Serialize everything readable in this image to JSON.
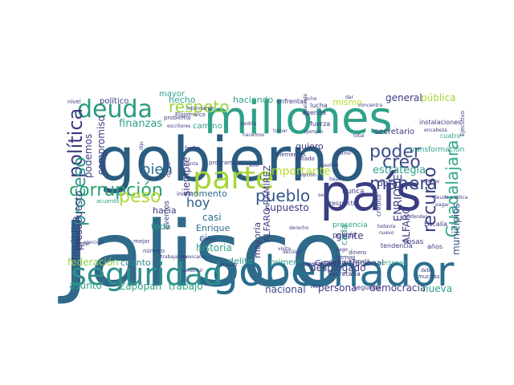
{
  "words": [
    {
      "text": "Jalisco",
      "color": "#2f6a8a"
    },
    {
      "text": "gobierno",
      "color": "#2b5c80"
    },
    {
      "text": "país",
      "color": "#3a3e82"
    },
    {
      "text": "millones",
      "color": "#2fa08a"
    },
    {
      "text": "gobernador",
      "color": "#2a6e8e"
    },
    {
      "text": "seguridad",
      "color": "#2e8f8c"
    },
    {
      "text": "parte",
      "color": "#a5d63a"
    },
    {
      "text": "deuda",
      "color": "#2a9b7e"
    },
    {
      "text": "corrupción",
      "color": "#2ba16f"
    },
    {
      "text": "respeto",
      "color": "#9ed43c"
    },
    {
      "text": "política",
      "color": "#3b3a80"
    },
    {
      "text": "poder",
      "color": "#3a4f8a"
    },
    {
      "text": "creo",
      "color": "#3a4a89"
    },
    {
      "text": "manera",
      "color": "#3a4a89"
    },
    {
      "text": "pueblo",
      "color": "#33578c"
    },
    {
      "text": "peso",
      "color": "#b0d834"
    },
    {
      "text": "bien",
      "color": "#2d6c8e"
    },
    {
      "text": "hoy",
      "color": "#2d5f8c"
    },
    {
      "text": "recurso",
      "color": "#3a3e82"
    },
    {
      "text": "Guadalajara",
      "color": "#2fa78a"
    },
    {
      "text": "proceso",
      "color": "#2f9a8a"
    },
    {
      "text": "importante",
      "color": "#b5de2b"
    },
    {
      "text": "estrategia",
      "color": "#2fa08a"
    },
    {
      "text": "general",
      "color": "#3b3a80"
    },
    {
      "text": "pública",
      "color": "#a5d63a"
    },
    {
      "text": "finanzas",
      "color": "#2fa08a"
    },
    {
      "text": "compromiso",
      "color": "#3b3a80"
    },
    {
      "text": "podemos",
      "color": "#3b3a80"
    },
    {
      "text": "presupuesto",
      "color": "#3b3a80"
    },
    {
      "text": "República",
      "color": "#3b3a80"
    },
    {
      "text": "federación",
      "color": "#8fd14f"
    },
    {
      "text": "cuanto",
      "color": "#2f8a8c"
    },
    {
      "text": "asunto",
      "color": "#2fa08a"
    },
    {
      "text": "Zapopan",
      "color": "#2fa08a"
    },
    {
      "text": "trabajo",
      "color": "#2fa08a"
    },
    {
      "text": "nacional",
      "color": "#3a4a89"
    },
    {
      "text": "persona",
      "color": "#3b3a80"
    },
    {
      "text": "democracia",
      "color": "#3b3a80"
    },
    {
      "text": "nueva",
      "color": "#2fa08a"
    },
    {
      "text": "municipios",
      "color": "#3a4a89"
    },
    {
      "text": "ENRIQUE",
      "color": "#3b3a80"
    },
    {
      "text": "ALFARO",
      "color": "#3b3a80"
    },
    {
      "text": "desplegado",
      "color": "#3b3a80"
    },
    {
      "text": "Guardia Nacional",
      "color": "#3b3a80"
    },
    {
      "text": "historia",
      "color": "#2fa08a"
    },
    {
      "text": "cinco",
      "color": "#2d6c8e"
    },
    {
      "text": "Enrique",
      "color": "#2d6c8e"
    },
    {
      "text": "casi",
      "color": "#2d6c8e"
    },
    {
      "text": "hacia",
      "color": "#3b3a80"
    },
    {
      "text": "momento",
      "color": "#2d6c8e"
    },
    {
      "text": "siempre",
      "color": "#3b3a80"
    },
    {
      "text": "supuesto",
      "color": "#3b3a80"
    },
    {
      "text": "gente",
      "color": "#3b3a80"
    },
    {
      "text": "cada",
      "color": "#2fa08a"
    },
    {
      "text": "obra",
      "color": "#3b3a80"
    },
    {
      "text": "mismo",
      "color": "#b5de2b"
    },
    {
      "text": "hecho",
      "color": "#2fa08a"
    },
    {
      "text": "haciendo",
      "color": "#2fa08a"
    },
    {
      "text": "mayor",
      "color": "#2fa08a"
    },
    {
      "text": "político",
      "color": "#3b3a80"
    },
    {
      "text": "camino",
      "color": "#2fa08a"
    },
    {
      "text": "ALFARO RAMÍREZ",
      "color": "#3b3a80"
    },
    {
      "text": "mayoría",
      "color": "#3b3a80"
    },
    {
      "text": "delito",
      "color": "#2fa08a"
    },
    {
      "text": "primero",
      "color": "#2fa08a"
    },
    {
      "text": "toda",
      "color": "#2fa08a"
    },
    {
      "text": "eventos",
      "color": "#3b3a80"
    },
    {
      "text": "quiero",
      "color": "#3b3a80"
    },
    {
      "text": "secretario",
      "color": "#3b3a80"
    },
    {
      "text": "cuatro",
      "color": "#2fa08a"
    },
    {
      "text": "transformación",
      "color": "#2fa08a"
    },
    {
      "text": "Fiscalía",
      "color": "#3b3a80"
    },
    {
      "text": "cosas",
      "color": "#3b3a80"
    },
    {
      "text": "presencia",
      "color": "#2fa08a"
    },
    {
      "text": "policía",
      "color": "#3b3a80"
    },
    {
      "text": "respecto",
      "color": "#3b3a80"
    },
    {
      "text": "Secretaría",
      "color": "#3b3a80"
    },
    {
      "text": "nunca",
      "color": "#3b3a80"
    },
    {
      "text": "agenda",
      "color": "#3b3a80"
    },
    {
      "text": "fuerza",
      "color": "#3b3a80"
    },
    {
      "text": "lucha",
      "color": "#3b3a80"
    },
    {
      "text": "enfrentar",
      "color": "#3b3a80"
    },
    {
      "text": "reducción",
      "color": "#3b3a80"
    },
    {
      "text": "personas",
      "color": "#2fa08a"
    },
    {
      "text": "segunda",
      "color": "#3b3a80"
    },
    {
      "text": "muchas",
      "color": "#3b3a80"
    },
    {
      "text": "tendencia",
      "color": "#3b3a80"
    },
    {
      "text": "años",
      "color": "#3b3a80"
    },
    {
      "text": "Ejecutivo",
      "color": "#3b3a80"
    },
    {
      "text": "crédito",
      "color": "#3b3a80"
    },
    {
      "text": "Defender",
      "color": "#3b3a80"
    },
    {
      "text": "deuda pública",
      "color": "#3b3a80"
    },
    {
      "text": "instalaciones",
      "color": "#3b3a80"
    },
    {
      "text": "encabeza",
      "color": "#3b3a80"
    },
    {
      "text": "dinero",
      "color": "#3b3a80"
    },
    {
      "text": "tiempo",
      "color": "#3b3a80"
    },
    {
      "text": "Tonalá",
      "color": "#3b3a80"
    },
    {
      "text": "todavía",
      "color": "#3b3a80"
    },
    {
      "text": "nuevo",
      "color": "#3b3a80"
    },
    {
      "text": "interés",
      "color": "#3b3a80"
    },
    {
      "text": "total",
      "color": "#3b3a80"
    },
    {
      "text": "verdad",
      "color": "#3b3a80"
    },
    {
      "text": "construir",
      "color": "#3b3a80"
    },
    {
      "text": "necesita",
      "color": "#3b3a80"
    },
    {
      "text": "programa",
      "color": "#3b3a80"
    },
    {
      "text": "fecha",
      "color": "#3b3a80"
    },
    {
      "text": "dicho",
      "color": "#3b3a80"
    },
    {
      "text": "iniciar",
      "color": "#3b3a80"
    },
    {
      "text": "sólo",
      "color": "#3b3a80"
    },
    {
      "text": "elementos",
      "color": "#3b3a80"
    },
    {
      "text": "estado",
      "color": "#3b3a80"
    },
    {
      "text": "opción",
      "color": "#3b3a80"
    },
    {
      "text": "último",
      "color": "#3b3a80"
    },
    {
      "text": "dar",
      "color": "#3b3a80"
    },
    {
      "text": "ocho",
      "color": "#3b3a80"
    },
    {
      "text": "nivel",
      "color": "#3b3a80"
    },
    {
      "text": "acuerdo",
      "color": "#2fa08a"
    },
    {
      "text": "medio",
      "color": "#3b3a80"
    },
    {
      "text": "mexicano",
      "color": "#3b3a80"
    },
    {
      "text": "trabajando",
      "color": "#3b3a80"
    },
    {
      "text": "mejor",
      "color": "#3b3a80"
    },
    {
      "text": "número",
      "color": "#3b3a80"
    },
    {
      "text": "lugar",
      "color": "#3b3a80"
    },
    {
      "text": "ejercicio",
      "color": "#3b3a80"
    },
    {
      "text": "problema",
      "color": "#3b3a80"
    },
    {
      "text": "Flajomulco",
      "color": "#3b3a80"
    },
    {
      "text": "información",
      "color": "#3b3a80"
    },
    {
      "text": "escritores",
      "color": "#3b3a80"
    },
    {
      "text": "dijo",
      "color": "#3b3a80"
    },
    {
      "text": "podría",
      "color": "#3b3a80"
    },
    {
      "text": "hacemos",
      "color": "#3b3a80"
    },
    {
      "text": "tomar",
      "color": "#3b3a80"
    },
    {
      "text": "ejemplo",
      "color": "#3b3a80"
    },
    {
      "text": "derecho",
      "color": "#3b3a80"
    },
    {
      "text": "cuenta",
      "color": "#3b3a80"
    },
    {
      "text": "decisión",
      "color": "#3b3a80"
    },
    {
      "text": "ser",
      "color": "#3b3a80"
    },
    {
      "text": "debe",
      "color": "#3b3a80"
    },
    {
      "text": "visita",
      "color": "#3b3a80"
    },
    {
      "text": "adelante",
      "color": "#3b3a80"
    },
    {
      "text": "resolver",
      "color": "#3b3a80"
    },
    {
      "text": "bajar",
      "color": "#3b3a80"
    },
    {
      "text": "solo",
      "color": "#3b3a80"
    },
    {
      "text": "concentra",
      "color": "#3b3a80"
    },
    {
      "text": "vez",
      "color": "#3b3a80"
    },
    {
      "text": "pago",
      "color": "#3b3a80"
    },
    {
      "text": "vivimos",
      "color": "#3b3a80"
    },
    {
      "text": "pagar",
      "color": "#3b3a80"
    }
  ]
}
